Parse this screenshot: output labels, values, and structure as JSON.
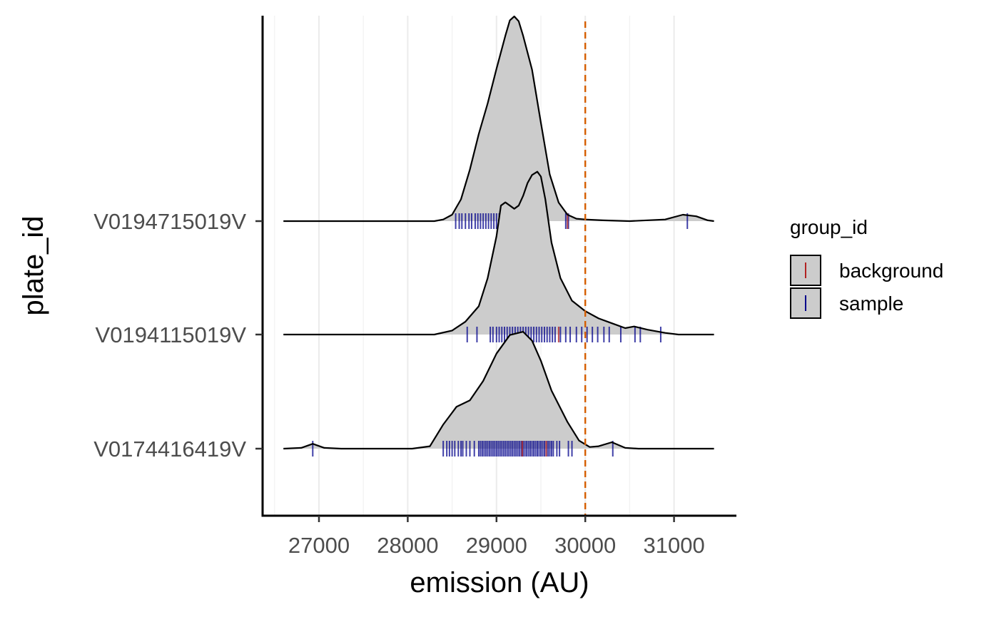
{
  "chart_data": {
    "type": "ridgeline-density",
    "xlabel": "emission (AU)",
    "ylabel": "plate_id",
    "xlim": [
      26550,
      31470
    ],
    "x_ticks": [
      27000,
      28000,
      29000,
      30000,
      31000
    ],
    "x_tick_labels": [
      "27000",
      "28000",
      "29000",
      "30000",
      "31000"
    ],
    "grid": "vertical major and minor",
    "reference_line": {
      "x": 30000,
      "color": "#D55E00",
      "style": "dashed"
    },
    "density_fill": "#cccccc",
    "colors": {
      "background": "#B22222",
      "sample": "#00008B"
    },
    "legend": {
      "title": "group_id",
      "position": "right",
      "entries": [
        {
          "label": "background",
          "color": "#B22222"
        },
        {
          "label": "sample",
          "color": "#00008B"
        }
      ]
    },
    "ridges": [
      {
        "plate_id": "V0174416419V",
        "density": [
          [
            26600,
            0
          ],
          [
            26800,
            0.01
          ],
          [
            26930,
            0.06
          ],
          [
            27060,
            0.01
          ],
          [
            27250,
            0
          ],
          [
            28050,
            0
          ],
          [
            28250,
            0.03
          ],
          [
            28400,
            0.3
          ],
          [
            28550,
            0.52
          ],
          [
            28700,
            0.6
          ],
          [
            28850,
            0.84
          ],
          [
            29000,
            1.18
          ],
          [
            29150,
            1.41
          ],
          [
            29300,
            1.45
          ],
          [
            29400,
            1.34
          ],
          [
            29500,
            1.09
          ],
          [
            29620,
            0.72
          ],
          [
            29800,
            0.33
          ],
          [
            29930,
            0.1
          ],
          [
            30050,
            0.02
          ],
          [
            30150,
            0.03
          ],
          [
            30300,
            0.08
          ],
          [
            30450,
            0.01
          ],
          [
            30600,
            0
          ],
          [
            31450,
            0
          ]
        ],
        "sample_rug": [
          26930,
          28400,
          28440,
          28470,
          28500,
          28530,
          28570,
          28600,
          28620,
          28660,
          28700,
          28750,
          28800,
          28820,
          28840,
          28860,
          28880,
          28900,
          28920,
          28940,
          28960,
          28980,
          29000,
          29020,
          29040,
          29060,
          29080,
          29100,
          29120,
          29140,
          29160,
          29180,
          29200,
          29220,
          29240,
          29260,
          29280,
          29300,
          29320,
          29340,
          29360,
          29380,
          29400,
          29420,
          29440,
          29460,
          29480,
          29500,
          29520,
          29540,
          29560,
          29580,
          29600,
          29620,
          29640,
          29680,
          29710,
          29810,
          29850,
          30310
        ],
        "background_rug": [
          29290,
          29560
        ]
      },
      {
        "plate_id": "V0194115019V",
        "density": [
          [
            26600,
            0
          ],
          [
            28300,
            0
          ],
          [
            28500,
            0.05
          ],
          [
            28650,
            0.16
          ],
          [
            28800,
            0.35
          ],
          [
            28900,
            0.7
          ],
          [
            29000,
            1.22
          ],
          [
            29050,
            1.6
          ],
          [
            29100,
            1.64
          ],
          [
            29150,
            1.6
          ],
          [
            29200,
            1.56
          ],
          [
            29250,
            1.6
          ],
          [
            29300,
            1.72
          ],
          [
            29350,
            1.88
          ],
          [
            29400,
            1.98
          ],
          [
            29460,
            2.02
          ],
          [
            29500,
            1.96
          ],
          [
            29550,
            1.68
          ],
          [
            29620,
            1.14
          ],
          [
            29720,
            0.7
          ],
          [
            29850,
            0.42
          ],
          [
            30000,
            0.29
          ],
          [
            30150,
            0.2
          ],
          [
            30300,
            0.14
          ],
          [
            30450,
            0.08
          ],
          [
            30550,
            0.1
          ],
          [
            30700,
            0.06
          ],
          [
            30900,
            0.02
          ],
          [
            31050,
            0
          ],
          [
            31450,
            0
          ]
        ],
        "sample_rug": [
          28670,
          28780,
          28930,
          28960,
          29000,
          29030,
          29060,
          29090,
          29120,
          29150,
          29180,
          29210,
          29240,
          29270,
          29300,
          29330,
          29360,
          29390,
          29420,
          29450,
          29480,
          29510,
          29540,
          29570,
          29600,
          29630,
          29660,
          29720,
          29780,
          29830,
          29900,
          29960,
          30020,
          30080,
          30140,
          30210,
          30270,
          30400,
          30560,
          30620,
          30850
        ],
        "background_rug": [
          29700
        ]
      },
      {
        "plate_id": "V0194715019V",
        "density": [
          [
            26600,
            0
          ],
          [
            28300,
            0
          ],
          [
            28400,
            0.02
          ],
          [
            28500,
            0.08
          ],
          [
            28600,
            0.27
          ],
          [
            28700,
            0.64
          ],
          [
            28800,
            1.08
          ],
          [
            28900,
            1.46
          ],
          [
            29000,
            1.89
          ],
          [
            29100,
            2.3
          ],
          [
            29150,
            2.49
          ],
          [
            29200,
            2.54
          ],
          [
            29250,
            2.48
          ],
          [
            29300,
            2.3
          ],
          [
            29400,
            1.88
          ],
          [
            29500,
            1.22
          ],
          [
            29600,
            0.58
          ],
          [
            29700,
            0.23
          ],
          [
            29800,
            0.08
          ],
          [
            29900,
            0.03
          ],
          [
            30000,
            0.02
          ],
          [
            30200,
            0.01
          ],
          [
            30500,
            0
          ],
          [
            30900,
            0.02
          ],
          [
            31100,
            0.08
          ],
          [
            31250,
            0.06
          ],
          [
            31380,
            0.01
          ],
          [
            31450,
            0
          ]
        ],
        "sample_rug": [
          28540,
          28580,
          28610,
          28650,
          28690,
          28720,
          28760,
          28790,
          28820,
          28850,
          28880,
          28910,
          28940,
          28970,
          29000,
          29030,
          29060,
          29090,
          29120,
          29150,
          29180,
          29210,
          29240,
          29270,
          29300,
          29330,
          29360,
          29390,
          29420,
          29450,
          29480,
          29510,
          29540,
          29570,
          29780,
          29810,
          31150
        ],
        "background_rug": [
          29800
        ]
      }
    ]
  }
}
